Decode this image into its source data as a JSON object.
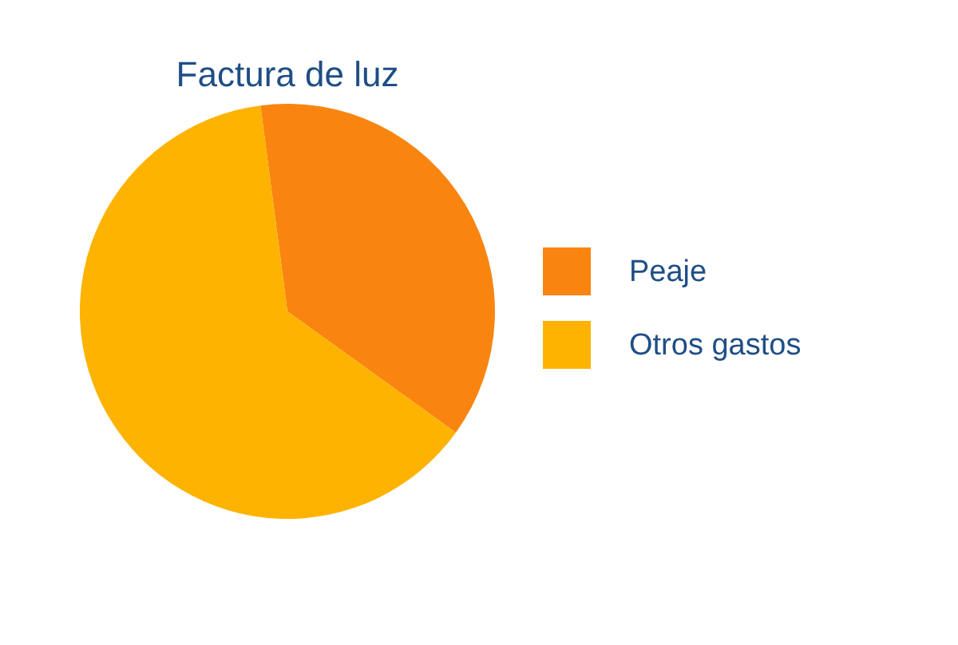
{
  "chart_data": {
    "type": "pie",
    "title": "Factura de luz",
    "categories": [
      "Peaje",
      "Otros gastos"
    ],
    "values": [
      37,
      63
    ],
    "colors": [
      "#f98510",
      "#fdb300"
    ],
    "legend": "right"
  }
}
